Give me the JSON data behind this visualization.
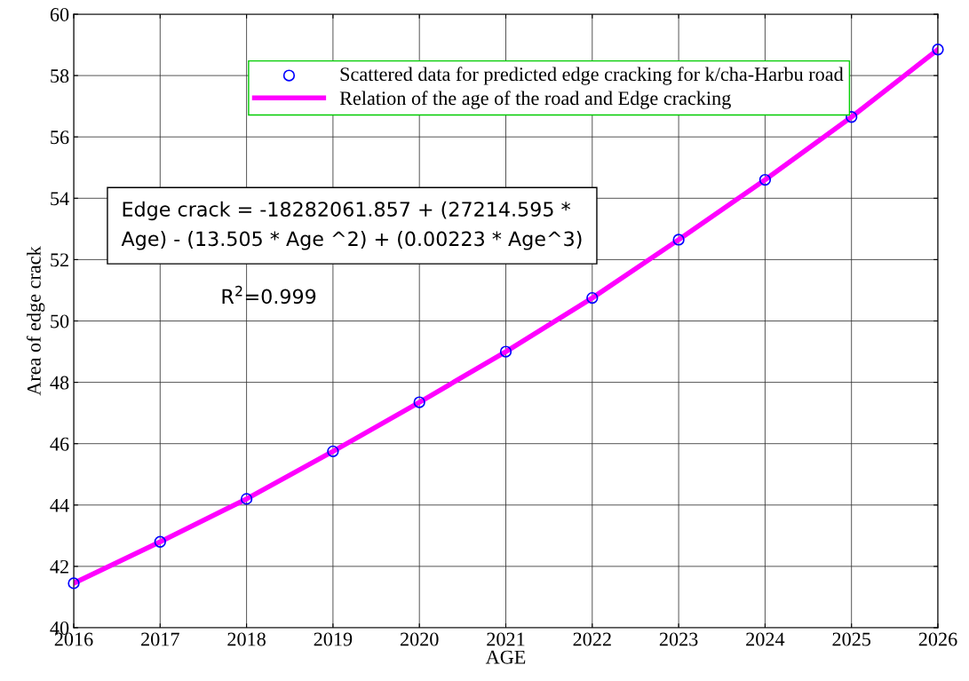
{
  "chart_data": {
    "type": "scatter",
    "xlabel": "AGE",
    "ylabel": "Area of edge crack",
    "x": [
      2016,
      2017,
      2018,
      2019,
      2020,
      2021,
      2022,
      2023,
      2024,
      2025,
      2026
    ],
    "series": [
      {
        "name": "Scattered data for predicted edge cracking for k/cha-Harbu road",
        "marker": "circle",
        "color": "#0000ff",
        "values": [
          41.45,
          42.8,
          44.2,
          45.75,
          47.35,
          49.0,
          50.75,
          52.65,
          54.6,
          56.65,
          58.85
        ]
      },
      {
        "name": "Relation of the age of the road and Edge cracking",
        "type": "line",
        "marker": "none",
        "line_style": "solid",
        "color": "#ff00ff",
        "values": [
          41.45,
          42.8,
          44.2,
          45.75,
          47.35,
          49.0,
          50.75,
          52.65,
          54.6,
          56.65,
          58.85
        ]
      }
    ],
    "xlim": [
      2016,
      2026
    ],
    "xticks": [
      2016,
      2017,
      2018,
      2019,
      2020,
      2021,
      2022,
      2023,
      2024,
      2025,
      2026
    ],
    "ylim": [
      40,
      60
    ],
    "yticks": [
      40,
      42,
      44,
      46,
      48,
      50,
      52,
      54,
      56,
      58,
      60
    ],
    "grid": true,
    "legend": "top",
    "annotations": [
      "Edge crack = -18282061.857 + (27214.595 * Age) - (13.505 * Age ^2) + (0.00223 * Age^3)",
      "R$^{2}$=0.999"
    ]
  }
}
